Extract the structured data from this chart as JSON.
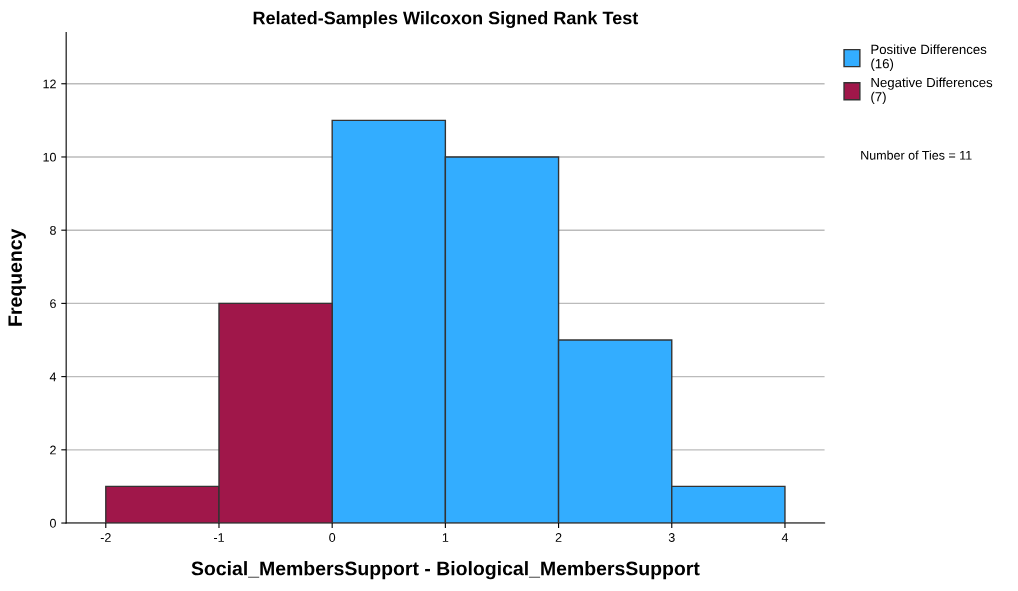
{
  "chart_data": {
    "type": "histogram",
    "title": "Related-Samples Wilcoxon Signed Rank Test",
    "xlabel": "Social_MembersSupport - Biological_MembersSupport",
    "ylabel": "Frequency",
    "bins": [
      -2,
      -1,
      0,
      1,
      2,
      3,
      4
    ],
    "series": [
      {
        "name": "Positive Differences\n(16)",
        "color": "#33adff",
        "values": [
          null,
          null,
          11,
          10,
          5,
          1
        ]
      },
      {
        "name": "Negative Differences\n(7)",
        "color": "#a0174a",
        "values": [
          1,
          6,
          null,
          null,
          null,
          null
        ]
      }
    ],
    "xlim": [
      -2.35,
      4.35
    ],
    "xticks": [
      -2,
      -1,
      0,
      1,
      2,
      3,
      4
    ],
    "ylim": [
      0,
      13.4
    ],
    "yticks": [
      0,
      2,
      4,
      6,
      8,
      10,
      12
    ],
    "grid": "y",
    "legend": "top right",
    "annotations": [
      "Number of Ties = 11"
    ]
  }
}
